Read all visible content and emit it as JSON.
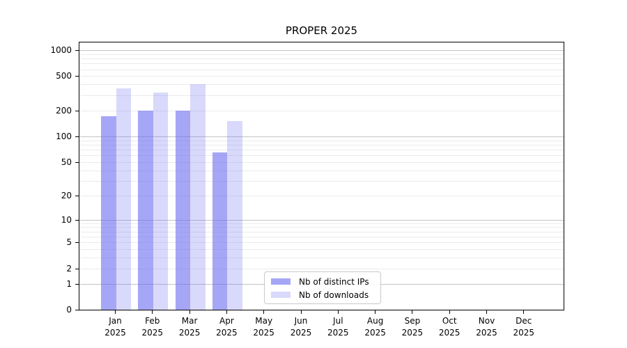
{
  "chart_data": {
    "type": "bar",
    "title": "PROPER 2025",
    "x_categories": [
      {
        "month": "Jan",
        "year": "2025"
      },
      {
        "month": "Feb",
        "year": "2025"
      },
      {
        "month": "Mar",
        "year": "2025"
      },
      {
        "month": "Apr",
        "year": "2025"
      },
      {
        "month": "May",
        "year": "2025"
      },
      {
        "month": "Jun",
        "year": "2025"
      },
      {
        "month": "Jul",
        "year": "2025"
      },
      {
        "month": "Aug",
        "year": "2025"
      },
      {
        "month": "Sep",
        "year": "2025"
      },
      {
        "month": "Oct",
        "year": "2025"
      },
      {
        "month": "Nov",
        "year": "2025"
      },
      {
        "month": "Dec",
        "year": "2025"
      }
    ],
    "series": [
      {
        "name": "Nb of distinct IPs",
        "color": "rgba(102,102,240,0.58)",
        "values": [
          170,
          200,
          200,
          65,
          0,
          0,
          0,
          0,
          0,
          0,
          0,
          0
        ]
      },
      {
        "name": "Nb of downloads",
        "color": "rgba(102,102,240,0.25)",
        "values": [
          360,
          320,
          400,
          150,
          0,
          0,
          0,
          0,
          0,
          0,
          0,
          0
        ]
      }
    ],
    "y_axis": {
      "scale": "log10(1+y)",
      "ticks": [
        0,
        1,
        2,
        5,
        10,
        20,
        50,
        100,
        200,
        500,
        1000
      ],
      "major_gridline_values": [
        1,
        10,
        100,
        1000
      ],
      "minor_gridline_values": [
        3,
        4,
        6,
        7,
        8,
        9,
        30,
        40,
        60,
        70,
        80,
        90,
        300,
        400,
        600,
        700,
        800,
        900
      ],
      "range": [
        0,
        1250
      ],
      "grid": "on"
    },
    "legend_position": "inside-bottom-center",
    "colors": {
      "major_grid": "#c4c4c4",
      "minor_grid": "#ebebeb",
      "spine": "#000000",
      "background": "#ffffff"
    }
  }
}
